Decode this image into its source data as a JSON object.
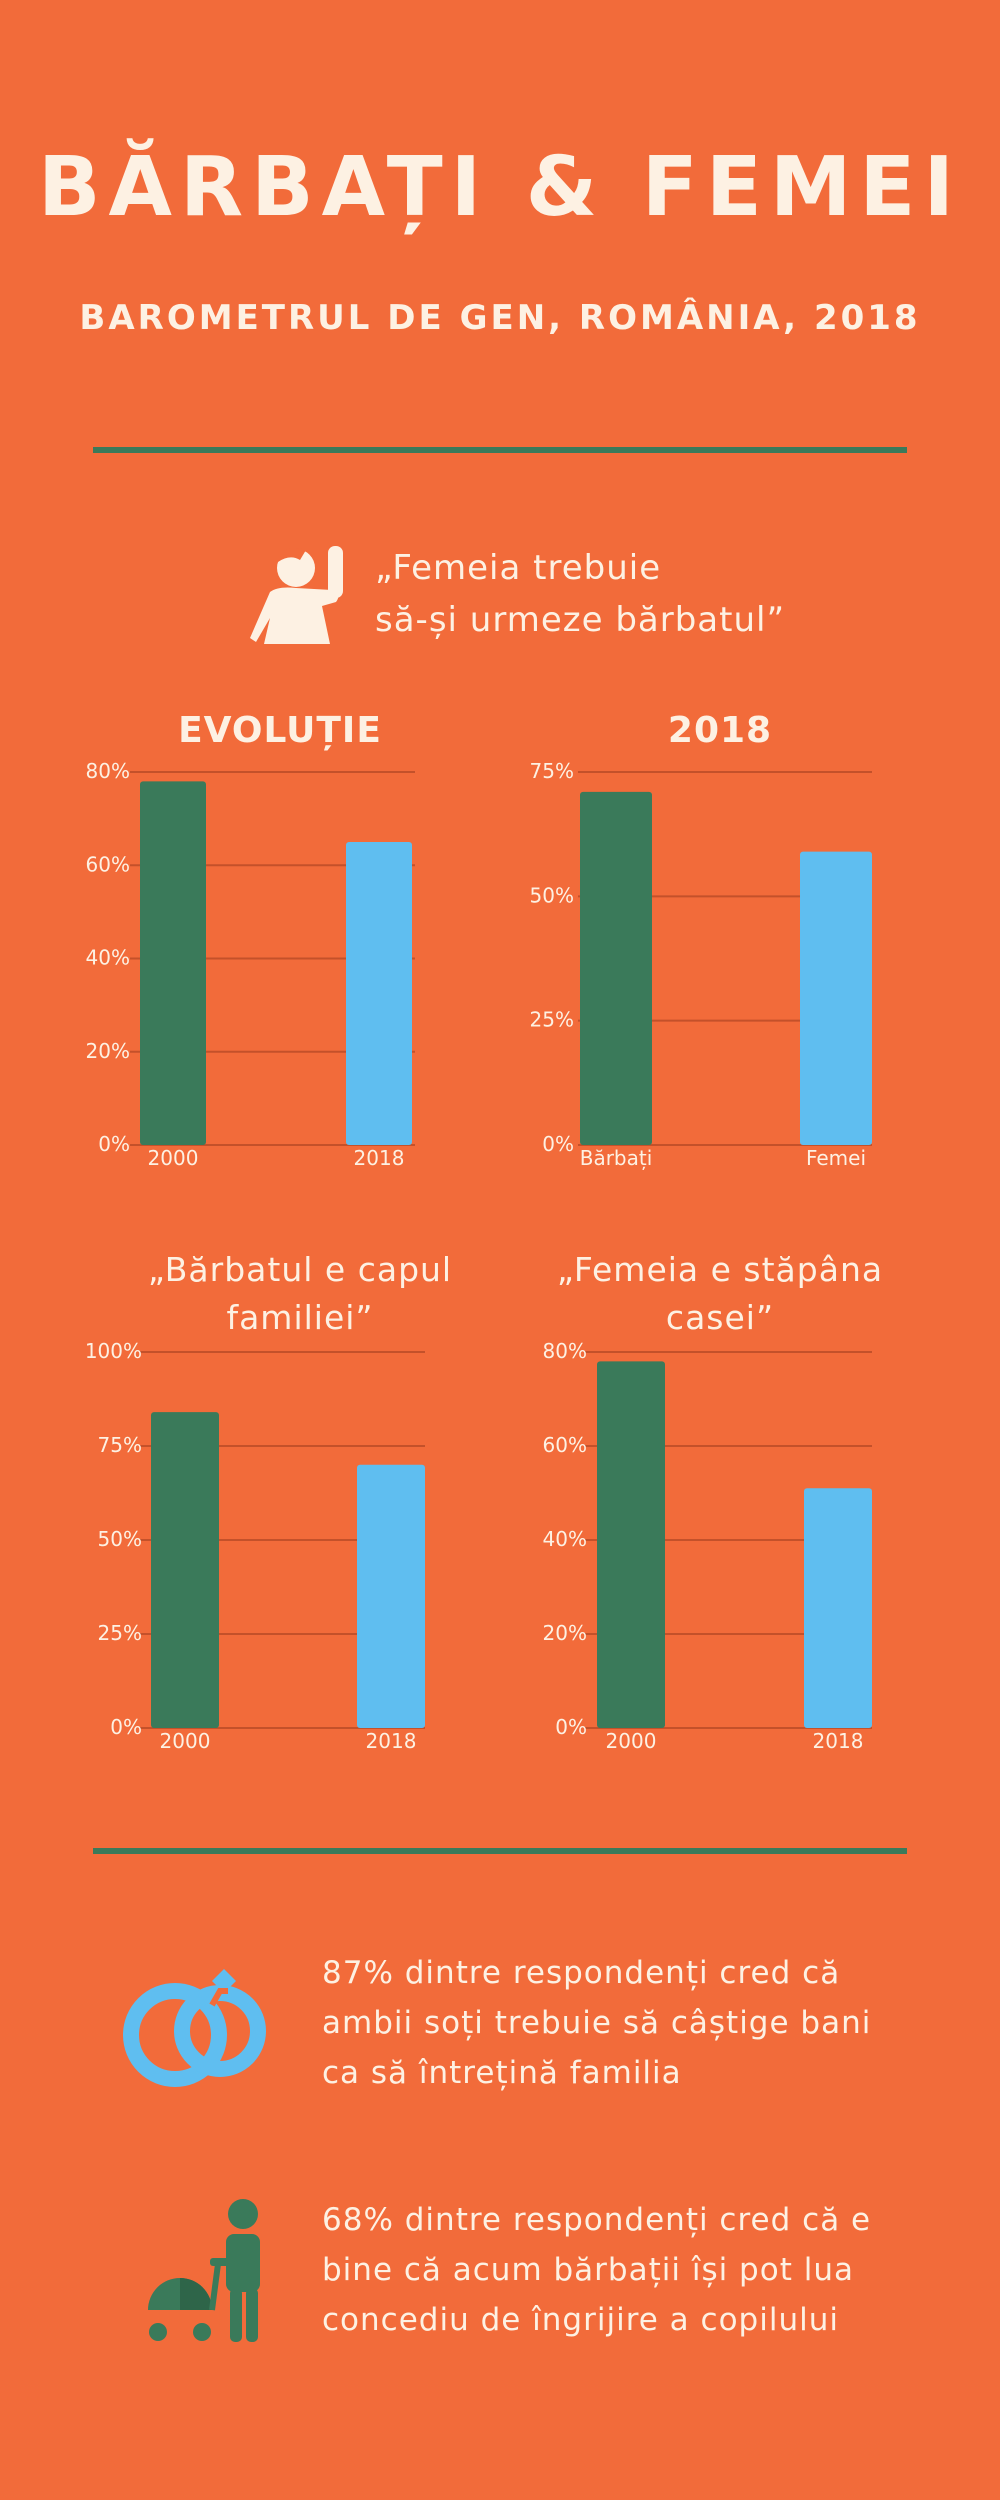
{
  "header": {
    "title": "BĂRBAȚI & FEMEI",
    "subtitle": "BAROMETRUL DE GEN, ROMÂNIA, 2018"
  },
  "quote": {
    "icon": "person-waving-icon",
    "line1": "„Femeia trebuie",
    "line2": "să-și urmeze bărbatul”"
  },
  "colors": {
    "background": "#F26B3A",
    "green": "#3A7A5A",
    "blue": "#5FBEF0",
    "text": "#FDF1E3",
    "grid": "#C4512A"
  },
  "chart_data": [
    {
      "type": "bar",
      "title": "EVOLUȚIE",
      "categories": [
        "2000",
        "2018"
      ],
      "values": [
        78,
        65
      ],
      "bar_colors": [
        "#3A7A5A",
        "#5FBEF0"
      ],
      "ylim": [
        0,
        80
      ],
      "yticks": [
        0,
        20,
        40,
        60,
        80
      ],
      "ytick_labels": [
        "0%",
        "20%",
        "40%",
        "60%",
        "80%"
      ],
      "grid": true
    },
    {
      "type": "bar",
      "title": "2018",
      "categories": [
        "Bărbați",
        "Femei"
      ],
      "values": [
        71,
        59
      ],
      "bar_colors": [
        "#3A7A5A",
        "#5FBEF0"
      ],
      "ylim": [
        0,
        75
      ],
      "yticks": [
        0,
        25,
        50,
        75
      ],
      "ytick_labels": [
        "0%",
        "25%",
        "50%",
        "75%"
      ],
      "grid": true
    },
    {
      "type": "bar",
      "title_lines": [
        "„Bărbatul e capul",
        "familiei”"
      ],
      "categories": [
        "2000",
        "2018"
      ],
      "values": [
        84,
        70
      ],
      "bar_colors": [
        "#3A7A5A",
        "#5FBEF0"
      ],
      "ylim": [
        0,
        100
      ],
      "yticks": [
        0,
        25,
        50,
        75,
        100
      ],
      "ytick_labels": [
        "0%",
        "25%",
        "50%",
        "75%",
        "100%"
      ],
      "grid": true
    },
    {
      "type": "bar",
      "title_lines": [
        "„Femeia e stăpâna",
        "casei”"
      ],
      "categories": [
        "2000",
        "2018"
      ],
      "values": [
        78,
        51
      ],
      "bar_colors": [
        "#3A7A5A",
        "#5FBEF0"
      ],
      "ylim": [
        0,
        80
      ],
      "yticks": [
        0,
        20,
        40,
        60,
        80
      ],
      "ytick_labels": [
        "0%",
        "20%",
        "40%",
        "60%",
        "80%"
      ],
      "grid": true
    }
  ],
  "facts": [
    {
      "icon": "wedding-rings-icon",
      "lines": [
        "87% dintre respondenți cred că",
        "ambii soți trebuie să câștige bani",
        "ca să întrețină familia"
      ]
    },
    {
      "icon": "parent-with-stroller-icon",
      "lines": [
        "68% dintre respondenți cred că e",
        "bine că acum bărbații își pot lua",
        "concediu de îngrijire a copilului"
      ]
    }
  ]
}
